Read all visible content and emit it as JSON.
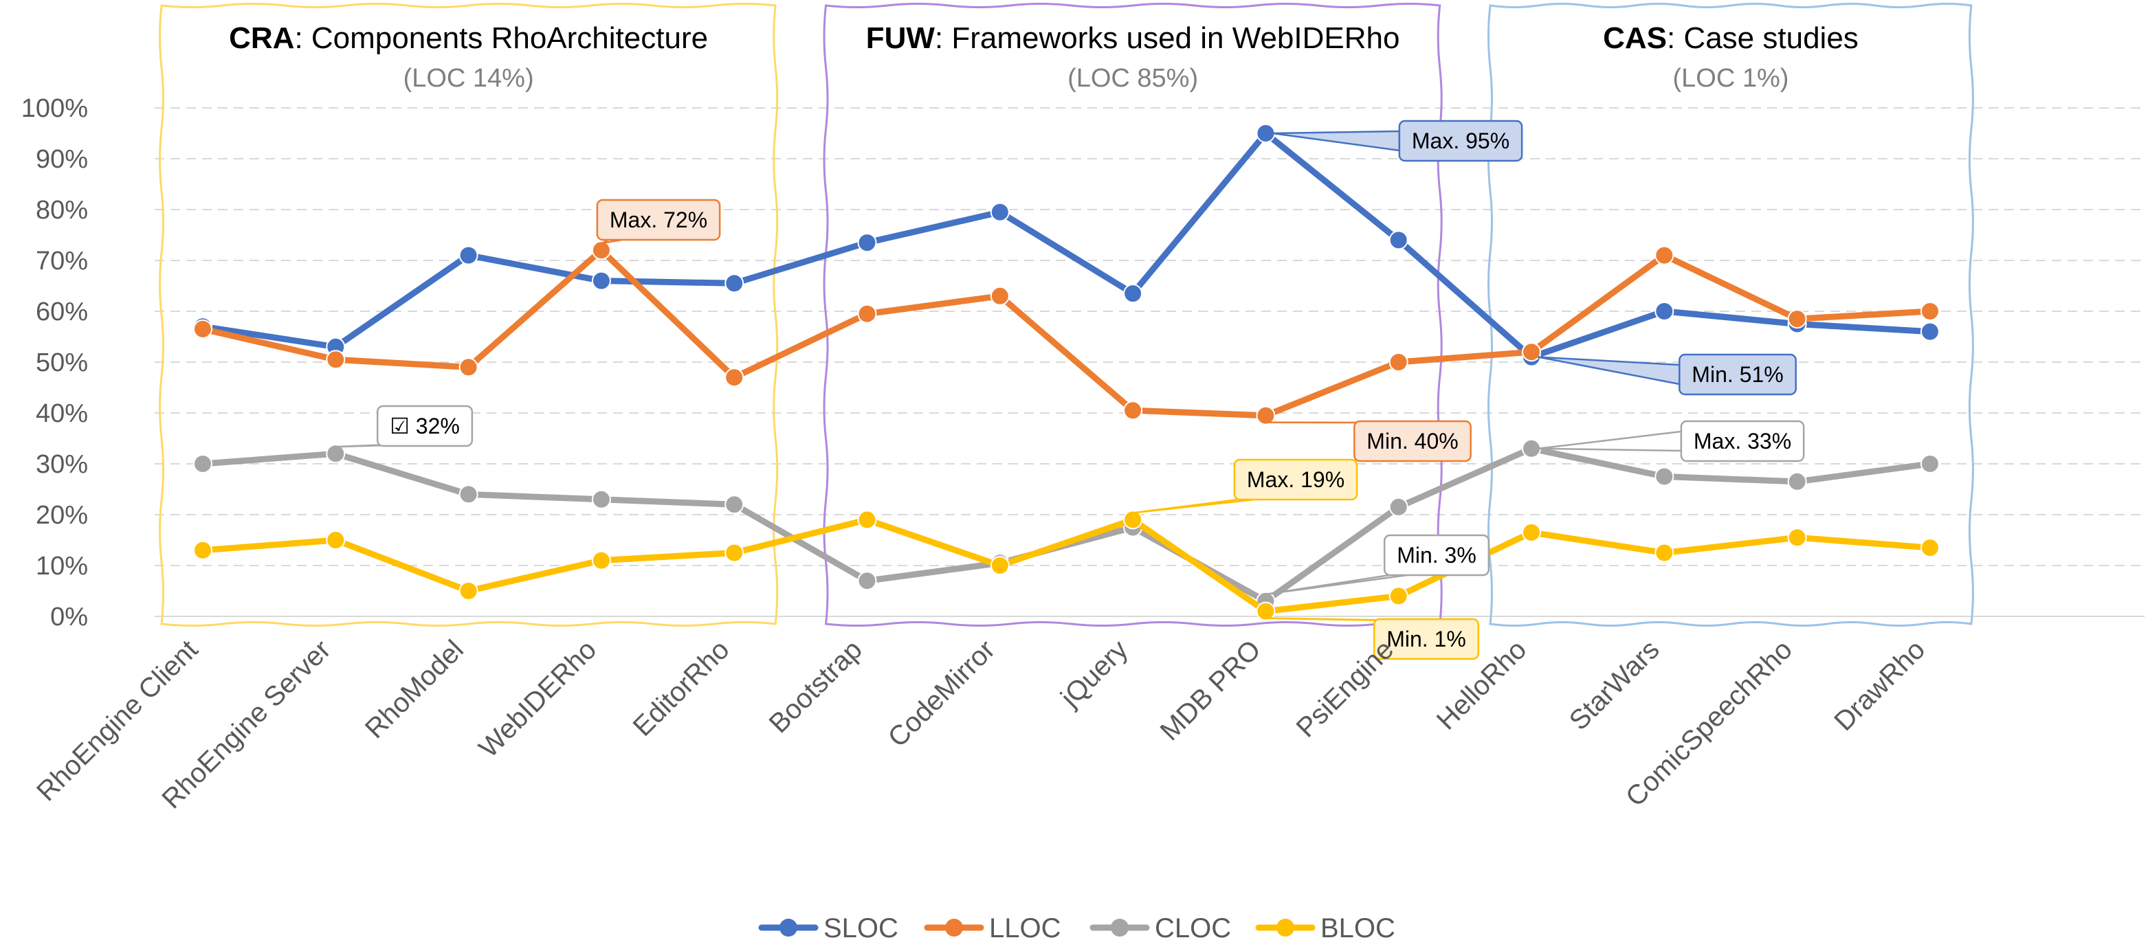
{
  "chart_data": {
    "type": "line",
    "categories": [
      "RhoEngine Client",
      "RhoEngine Server",
      "RhoModel",
      "WebIDERho",
      "EditorRho",
      "Bootstrap",
      "CodeMirror",
      "jQuery",
      "MDB PRO",
      "PsiEngine",
      "HelloRho",
      "StarWars",
      "ComicSpeechRho",
      "DrawRho"
    ],
    "y_ticks": [
      "0%",
      "10%",
      "20%",
      "30%",
      "40%",
      "50%",
      "60%",
      "70%",
      "80%",
      "90%",
      "100%"
    ],
    "ylim": [
      0,
      100
    ],
    "grid": "horizontal dashed",
    "legend_position": "bottom",
    "series": [
      {
        "name": "SLOC",
        "color": "#4472C4",
        "values": [
          57,
          53,
          71,
          66,
          65.5,
          73.5,
          79.5,
          63.5,
          95,
          74,
          51,
          60,
          57.5,
          56
        ]
      },
      {
        "name": "LLOC",
        "color": "#ED7D31",
        "values": [
          56.5,
          50.5,
          49,
          72,
          47,
          59.5,
          63,
          40.5,
          39.5,
          50,
          52,
          71,
          58.5,
          60
        ]
      },
      {
        "name": "CLOC",
        "color": "#A5A5A5",
        "values": [
          30,
          32,
          24,
          23,
          22,
          7,
          10.5,
          17.5,
          3,
          21.5,
          33,
          27.5,
          26.5,
          30
        ]
      },
      {
        "name": "BLOC",
        "color": "#FFC000",
        "values": [
          13,
          15,
          5,
          11,
          12.5,
          19,
          10,
          19,
          1,
          4,
          16.5,
          12.5,
          15.5,
          13.5
        ]
      }
    ],
    "groups": [
      {
        "bold": "CRA",
        "title": ": Components RhoArchitecture",
        "subtitle": "(LOC 14%)",
        "color": "#FFD966",
        "start": 0,
        "end": 4
      },
      {
        "bold": "FUW",
        "title": ": Frameworks used in WebIDERho",
        "subtitle": "(LOC 85%)",
        "color": "#B087E0",
        "start": 5,
        "end": 9
      },
      {
        "bold": "CAS",
        "title": ": Case studies",
        "subtitle": "(LOC 1%)",
        "color": "#9DC3E6",
        "start": 10,
        "end": 13
      }
    ],
    "annotations": [
      {
        "text": "Max. 72%",
        "series": 1,
        "index": 3,
        "fill": "#FBE5D6",
        "stroke": "#ED7D31"
      },
      {
        "text": "Max. 95%",
        "series": 0,
        "index": 8,
        "fill": "#C9D6EE",
        "stroke": "#4472C4"
      },
      {
        "text": "Min. 51%",
        "series": 0,
        "index": 10,
        "fill": "#C9D6EE",
        "stroke": "#4472C4"
      },
      {
        "text": "☑ 32%",
        "series": 2,
        "index": 1,
        "fill": "#FFFFFF",
        "stroke": "#A5A5A5"
      },
      {
        "text": "Min. 40%",
        "series": 1,
        "index": 8,
        "fill": "#FBE5D6",
        "stroke": "#ED7D31"
      },
      {
        "text": "Max. 19%",
        "series": 3,
        "index": 7,
        "fill": "#FFF2CC",
        "stroke": "#FFC000"
      },
      {
        "text": "Min. 3%",
        "series": 2,
        "index": 8,
        "fill": "#FFFFFF",
        "stroke": "#A5A5A5"
      },
      {
        "text": "Min. 1%",
        "series": 3,
        "index": 8,
        "fill": "#FFF2CC",
        "stroke": "#FFC000"
      },
      {
        "text": "Max. 33%",
        "series": 2,
        "index": 10,
        "fill": "#FFFFFF",
        "stroke": "#A5A5A5"
      }
    ]
  }
}
